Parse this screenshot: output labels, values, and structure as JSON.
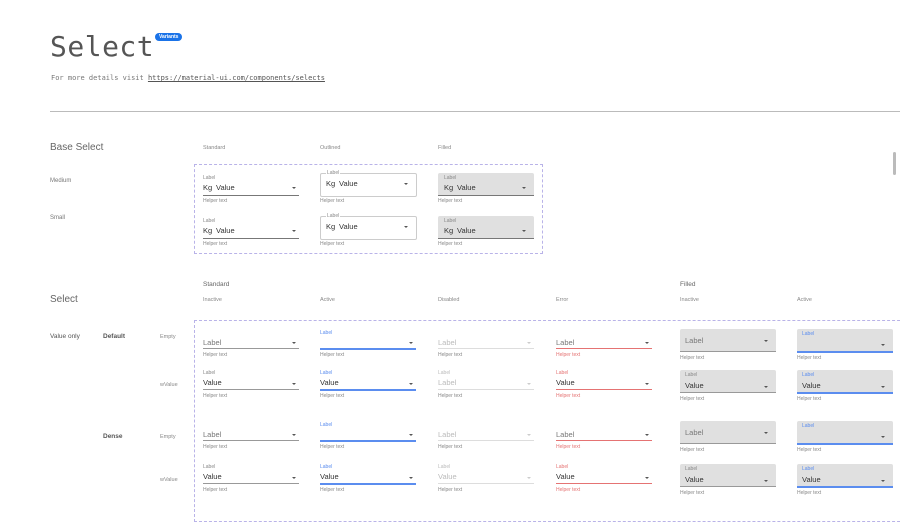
{
  "header": {
    "title": "Select",
    "badge": "Variants",
    "subtitle_prefix": "For more details visit ",
    "subtitle_link": "https://material-ui.com/components/selects"
  },
  "colors": {
    "accent": "#1a73e8",
    "active": "#5b8def",
    "error": "#e57373",
    "filled_bg": "#e0e0e0",
    "dashed": "#b9b3e8"
  },
  "base": {
    "title": "Base Select",
    "columns": [
      "Standard",
      "Outlined",
      "Filled"
    ],
    "rows": [
      {
        "label": "Medium"
      },
      {
        "label": "Small"
      }
    ],
    "field": {
      "label": "Label",
      "prefix": "Kg",
      "value": "Value",
      "helper": "Helper text"
    }
  },
  "select": {
    "title": "Select",
    "group_standard": "Standard",
    "group_filled": "Filled",
    "columns": [
      "Inactive",
      "Active",
      "Disabled",
      "Error",
      "Inactive",
      "Active"
    ],
    "row_group": "Value only",
    "densities": [
      "Default",
      "Dense"
    ],
    "rows": [
      {
        "state": "Empty",
        "label": "Label",
        "value": "",
        "helper": "Helper text"
      },
      {
        "state": "wValue",
        "label": "Label",
        "value": "Value",
        "helper": "Helper text"
      },
      {
        "state": "Empty",
        "label": "Label",
        "value": "",
        "helper": "Helper text"
      },
      {
        "state": "wValue",
        "label": "Label",
        "value": "Value",
        "helper": "Helper text"
      }
    ],
    "disabled_value_placeholder": "Label"
  }
}
